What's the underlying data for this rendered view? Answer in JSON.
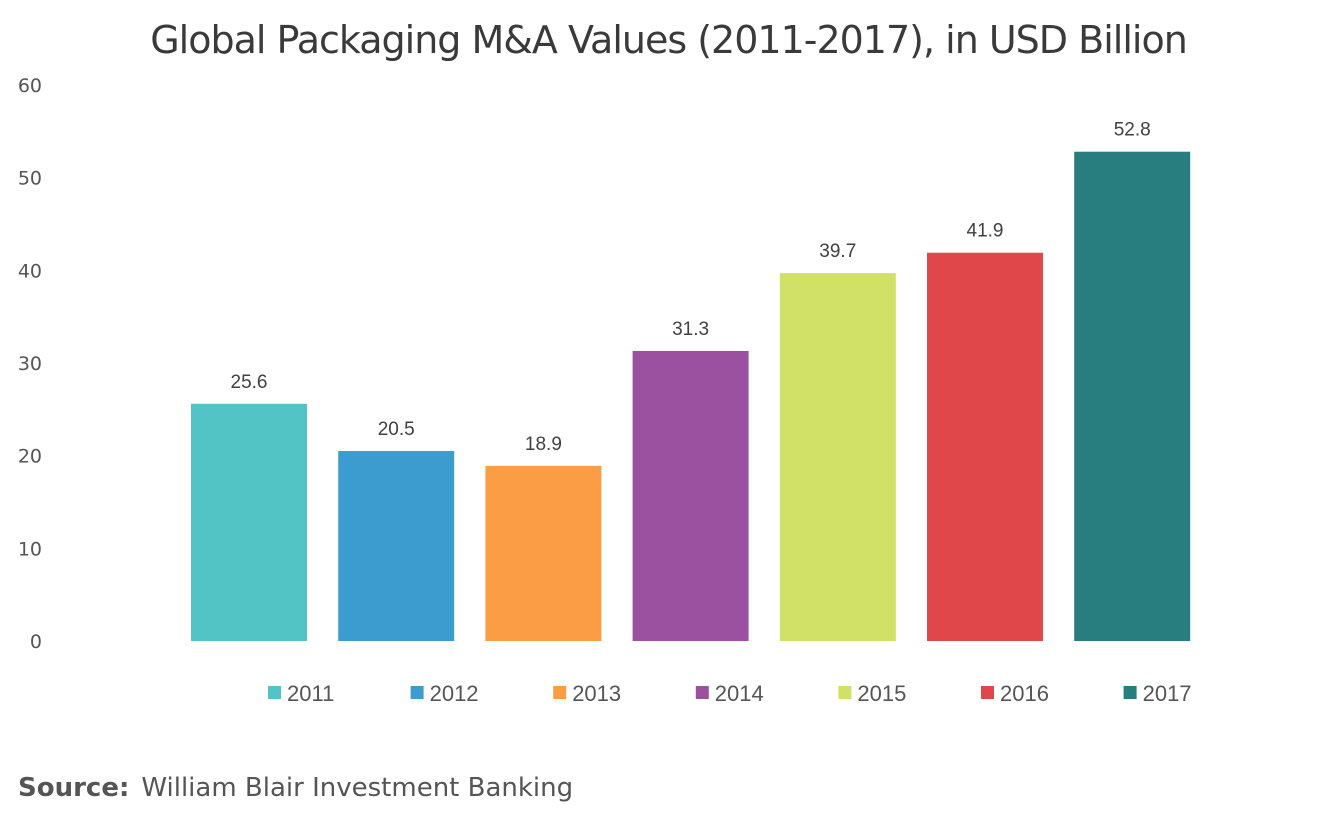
{
  "chart_data": {
    "type": "bar",
    "title": "Global Packaging M&A Values (2011-2017), in USD Billion",
    "xlabel": "",
    "ylabel": "",
    "categories": [
      "2011",
      "2012",
      "2013",
      "2014",
      "2015",
      "2016",
      "2017"
    ],
    "values": [
      25.6,
      20.5,
      18.9,
      31.3,
      39.7,
      41.9,
      52.8
    ],
    "data_labels": [
      "25.6",
      "20.5",
      "18.9",
      "31.3",
      "39.7",
      "41.9",
      "52.8"
    ],
    "colors": [
      "#52c4c6",
      "#3d9ccf",
      "#fb9d45",
      "#9b51a0",
      "#d1e066",
      "#df474b",
      "#287d7f"
    ],
    "ylim": [
      0,
      60
    ],
    "yticks": [
      0,
      10,
      20,
      30,
      40,
      50,
      60
    ],
    "grid": false,
    "legend": {
      "position": "bottom",
      "entries": [
        "2011",
        "2012",
        "2013",
        "2014",
        "2015",
        "2016",
        "2017"
      ]
    }
  },
  "source": {
    "label": "Source:",
    "text": "William Blair Investment Banking"
  }
}
